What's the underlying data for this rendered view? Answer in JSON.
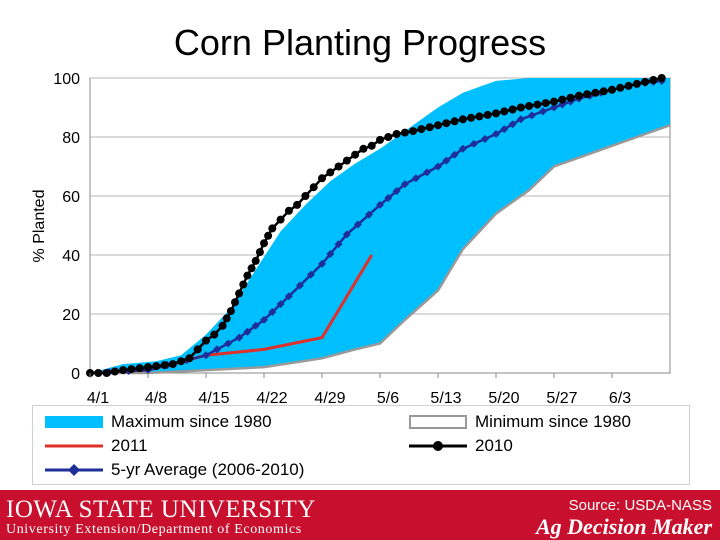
{
  "chart_data": {
    "type": "line",
    "title": "Corn Planting Progress",
    "xlabel": "",
    "ylabel": "% Planted",
    "ylim": [
      0,
      100
    ],
    "yticks": [
      0,
      20,
      40,
      60,
      80,
      100
    ],
    "xticks": [
      "4/1",
      "4/8",
      "4/15",
      "4/22",
      "4/29",
      "5/6",
      "5/13",
      "5/20",
      "5/27",
      "6/3"
    ],
    "x_unit": "days",
    "xlim": [
      0,
      70
    ],
    "legend_position": "bottom",
    "series": [
      {
        "name": "Maximum since 1980",
        "kind": "area-upper",
        "color": "#00bfff",
        "x": [
          0,
          4,
          8,
          11,
          14,
          17,
          20,
          23,
          26,
          29,
          32,
          35,
          37,
          39,
          42,
          45,
          49,
          53,
          56,
          60,
          63,
          66,
          70
        ],
        "y": [
          0,
          3,
          4,
          6,
          13,
          22,
          35,
          48,
          57,
          65,
          71,
          76,
          80,
          84,
          90,
          95,
          99,
          100,
          100,
          100,
          100,
          100,
          100
        ]
      },
      {
        "name": "Minimum since 1980",
        "kind": "area-lower",
        "color": "#999999",
        "x": [
          0,
          7,
          14,
          21,
          28,
          32,
          35,
          38,
          42,
          45,
          49,
          53,
          56,
          60,
          63,
          66,
          70
        ],
        "y": [
          0,
          0,
          1,
          2,
          5,
          8,
          10,
          18,
          28,
          42,
          54,
          62,
          70,
          74,
          77,
          80,
          84
        ]
      },
      {
        "name": "2011",
        "color": "#e0302a",
        "x": [
          0,
          7,
          14,
          21,
          28,
          31,
          34
        ],
        "y": [
          0,
          1,
          6,
          8,
          12,
          26,
          40
        ]
      },
      {
        "name": "2010",
        "color": "#000000",
        "x": [
          0,
          2,
          4,
          7,
          10,
          12,
          13,
          14,
          15,
          16,
          17,
          18,
          19,
          20,
          21,
          22,
          23,
          24,
          25,
          26,
          27,
          28,
          29,
          30,
          31,
          32,
          33,
          34,
          35,
          37,
          39,
          42,
          45,
          49,
          52,
          56,
          59,
          63,
          66,
          69
        ],
        "y": [
          0,
          0,
          1,
          2,
          3,
          5,
          8,
          11,
          13,
          16,
          21,
          27,
          33,
          38,
          44,
          49,
          52,
          55,
          57,
          60,
          63,
          66,
          68,
          70,
          72,
          74,
          76,
          77,
          79,
          81,
          82,
          84,
          86,
          88,
          90,
          92,
          94,
          96,
          98,
          100
        ]
      },
      {
        "name": "5-yr Average (2006-2010)",
        "color": "#1e2f9a",
        "x": [
          0,
          7,
          14,
          18,
          21,
          24,
          28,
          31,
          35,
          38,
          42,
          45,
          49,
          52,
          56,
          59,
          63,
          66,
          69
        ],
        "y": [
          0,
          1,
          6,
          12,
          18,
          26,
          37,
          47,
          57,
          64,
          70,
          76,
          81,
          86,
          90,
          93,
          96,
          98,
          99
        ]
      }
    ]
  },
  "legend": {
    "max_label": "Maximum since 1980",
    "min_label": "Minimum since 1980",
    "y2011_label": "2011",
    "y2010_label": "2010",
    "avg_label": "5-yr Average (2006-2010)"
  },
  "footer": {
    "institution": "IOWA STATE UNIVERSITY",
    "department": "University Extension/Department of Economics",
    "source": "Source: USDA-NASS",
    "brand": "Ag Decision Maker"
  },
  "colors": {
    "band": "#00bfff",
    "footer_bg": "#c8102e"
  }
}
